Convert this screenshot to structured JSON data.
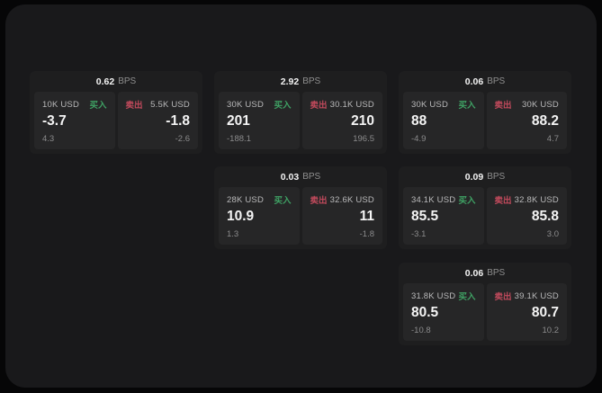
{
  "labels": {
    "buy": "买入",
    "sell": "卖出",
    "bps_unit": "BPS"
  },
  "colors": {
    "buy_green": "#3fa164",
    "sell_red": "#c14a5c",
    "panel_background": "#19191b",
    "card_background": "#1e1e1f",
    "pane_background": "#262627"
  },
  "cards": [
    {
      "bps": "0.62",
      "buy": {
        "amount": "10K USD",
        "price": "-3.7",
        "delta": "4.3"
      },
      "sell": {
        "amount": "5.5K USD",
        "price": "-1.8",
        "delta": "-2.6"
      }
    },
    {
      "bps": "2.92",
      "buy": {
        "amount": "30K USD",
        "price": "201",
        "delta": "-188.1"
      },
      "sell": {
        "amount": "30.1K USD",
        "price": "210",
        "delta": "196.5"
      }
    },
    {
      "bps": "0.06",
      "buy": {
        "amount": "30K USD",
        "price": "88",
        "delta": "-4.9"
      },
      "sell": {
        "amount": "30K USD",
        "price": "88.2",
        "delta": "4.7"
      }
    },
    {
      "bps": "0.03",
      "buy": {
        "amount": "28K USD",
        "price": "10.9",
        "delta": "1.3"
      },
      "sell": {
        "amount": "32.6K USD",
        "price": "11",
        "delta": "-1.8"
      }
    },
    {
      "bps": "0.09",
      "buy": {
        "amount": "34.1K USD",
        "price": "85.5",
        "delta": "-3.1"
      },
      "sell": {
        "amount": "32.8K USD",
        "price": "85.8",
        "delta": "3.0"
      }
    },
    {
      "bps": "0.06",
      "buy": {
        "amount": "31.8K USD",
        "price": "80.5",
        "delta": "-10.8"
      },
      "sell": {
        "amount": "39.1K USD",
        "price": "80.7",
        "delta": "10.2"
      }
    }
  ]
}
